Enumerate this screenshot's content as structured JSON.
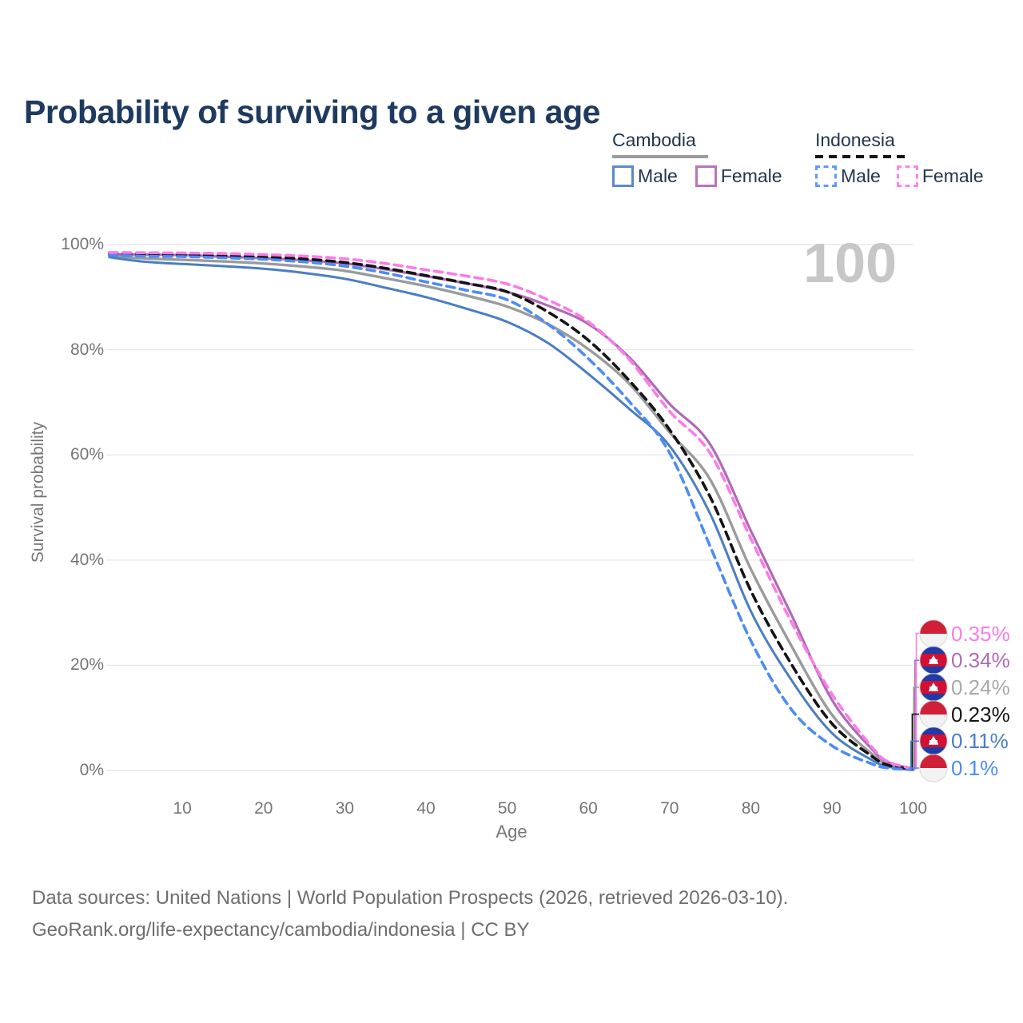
{
  "title": "Probability of surviving to a given age",
  "watermark_age": "100",
  "legend": {
    "groups": [
      {
        "name": "Cambodia",
        "line_style": "solid",
        "items": [
          {
            "label": "Male",
            "color": "#4a7ec2"
          },
          {
            "label": "Female",
            "color": "#b06ab4"
          }
        ]
      },
      {
        "name": "Indonesia",
        "line_style": "dashed",
        "items": [
          {
            "label": "Male",
            "color": "#4d8cf5"
          },
          {
            "label": "Female",
            "color": "#fa7ce8"
          }
        ]
      }
    ]
  },
  "chart_data": {
    "type": "line",
    "title": "Probability of surviving to a given age",
    "xlabel": "Age",
    "ylabel": "Survival probability",
    "xlim": [
      0,
      102
    ],
    "ylim": [
      0,
      100
    ],
    "grid": "horizontal-only",
    "legend_position": "top-right",
    "x_ticks": [
      10,
      20,
      30,
      40,
      50,
      60,
      70,
      80,
      90,
      100
    ],
    "y_tick_values": [
      100,
      80,
      60,
      40,
      20,
      0
    ],
    "y_tick_labels": [
      "100%",
      "80%",
      "60%",
      "40%",
      "20%",
      "0%"
    ],
    "ages": [
      1,
      5,
      10,
      15,
      20,
      25,
      30,
      35,
      40,
      45,
      50,
      55,
      60,
      65,
      70,
      75,
      80,
      85,
      90,
      95,
      97,
      100
    ],
    "series": [
      {
        "name": "Cambodia",
        "country": "Cambodia",
        "sex": "Both",
        "color": "#9b9b9b",
        "dash": false,
        "width": 3.4,
        "values": [
          97.9,
          97.4,
          97.1,
          96.8,
          96.4,
          95.8,
          95.0,
          93.6,
          92.1,
          90.3,
          88.2,
          84.9,
          80.1,
          73.6,
          64.3,
          55.3,
          38.3,
          23.7,
          10.6,
          3.0,
          1.1,
          0.24
        ]
      },
      {
        "name": "Cambodia Male",
        "country": "Cambodia",
        "sex": "Male",
        "color": "#4a7ec2",
        "dash": false,
        "width": 3.0,
        "values": [
          97.6,
          96.8,
          96.3,
          95.9,
          95.4,
          94.6,
          93.5,
          91.8,
          90.0,
          87.8,
          85.3,
          81.3,
          75.4,
          68.8,
          61.7,
          48.8,
          30.3,
          17.2,
          7.1,
          1.9,
          0.7,
          0.11
        ]
      },
      {
        "name": "Cambodia Female",
        "country": "Cambodia",
        "sex": "Female",
        "color": "#b06ab4",
        "dash": false,
        "width": 3.2,
        "values": [
          98.2,
          98.1,
          98.0,
          97.7,
          97.4,
          97.0,
          96.4,
          95.3,
          94.0,
          92.6,
          91.0,
          88.4,
          84.9,
          78.6,
          69.7,
          62.0,
          45.6,
          29.6,
          13.4,
          3.9,
          1.5,
          0.34
        ]
      },
      {
        "name": "Indonesia",
        "country": "Indonesia",
        "sex": "Both",
        "color": "#141414",
        "dash": true,
        "width": 3.6,
        "values": [
          98.25,
          98.1,
          98.05,
          97.9,
          97.65,
          97.25,
          96.6,
          95.5,
          94.1,
          92.65,
          91.0,
          87.2,
          81.8,
          74.2,
          64.8,
          52.0,
          34.2,
          20.2,
          8.9,
          2.6,
          0.95,
          0.23
        ]
      },
      {
        "name": "Indonesia Male",
        "country": "Indonesia",
        "sex": "Male",
        "color": "#4d8cf5",
        "dash": true,
        "width": 3.6,
        "values": [
          98.0,
          97.8,
          97.7,
          97.5,
          97.2,
          96.7,
          95.9,
          94.6,
          92.9,
          91.3,
          89.5,
          84.9,
          78.3,
          70.2,
          60.4,
          42.6,
          24.7,
          11.6,
          4.7,
          1.2,
          0.45,
          0.1
        ]
      },
      {
        "name": "Indonesia Female",
        "country": "Indonesia",
        "sex": "Female",
        "color": "#fa7ce8",
        "dash": true,
        "width": 3.6,
        "values": [
          98.5,
          98.45,
          98.4,
          98.3,
          98.1,
          97.8,
          97.3,
          96.4,
          95.2,
          94.0,
          92.5,
          89.5,
          85.3,
          78.2,
          68.3,
          60.3,
          44.1,
          28.2,
          14.5,
          4.3,
          1.6,
          0.35
        ]
      }
    ],
    "end_labels": [
      {
        "value": "0.35%",
        "series": "Indonesia Female",
        "flag": "indonesia",
        "color": "#fa7ce8"
      },
      {
        "value": "0.34%",
        "series": "Cambodia Female",
        "flag": "cambodia",
        "color": "#b06ab4"
      },
      {
        "value": "0.24%",
        "series": "Cambodia",
        "flag": "cambodia",
        "color": "#a9a9a9"
      },
      {
        "value": "0.23%",
        "series": "Indonesia",
        "flag": "indonesia",
        "color": "#141414"
      },
      {
        "value": "0.11%",
        "series": "Cambodia Male",
        "flag": "cambodia",
        "color": "#4a7ec2"
      },
      {
        "value": "0.1%",
        "series": "Indonesia Male",
        "flag": "indonesia",
        "color": "#4d8cf5"
      }
    ]
  },
  "footer": {
    "line1": "Data sources: United Nations | World Population Prospects (2026, retrieved 2026-03-10).",
    "line2": "GeoRank.org/life-expectancy/cambodia/indonesia | CC BY"
  },
  "colors": {
    "title": "#1e3a5f",
    "axis_text": "#757575",
    "gridline": "#e8e8e8",
    "watermark": "#c7c7c7",
    "cambodia_flag_blue": "#1f3ba6",
    "cambodia_flag_red": "#d21034",
    "indonesia_flag_red": "#cf2038"
  }
}
